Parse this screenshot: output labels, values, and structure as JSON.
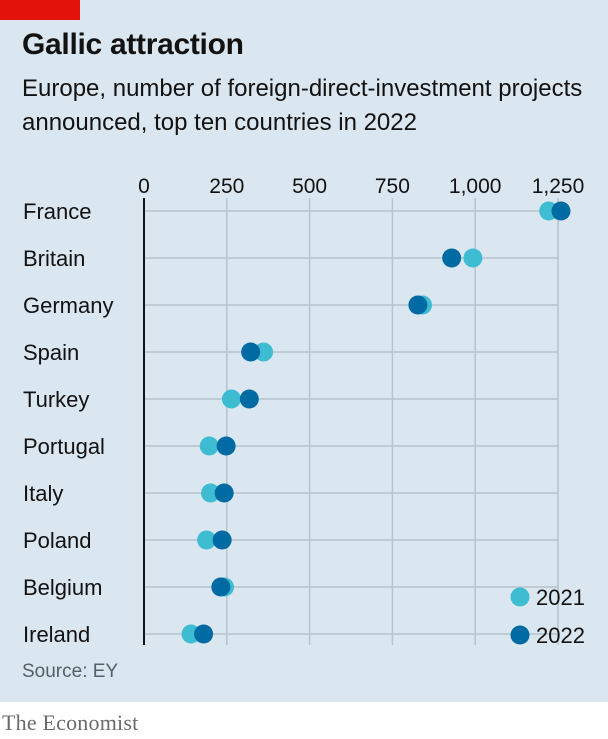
{
  "header": {
    "title": "Gallic attraction",
    "subtitle": "Europe, number of foreign-direct-investment projects announced, top ten countries in 2022"
  },
  "footer": {
    "source": "Source: EY",
    "brand": "The Economist"
  },
  "colors": {
    "background": "#dbe7f0",
    "accent_red": "#e3120b",
    "series_2021": "#3ebcd2",
    "series_2022": "#006ba2",
    "grid": "#b6c3cc",
    "axis": "#121212"
  },
  "chart_data": {
    "type": "scatter",
    "title": "Gallic attraction",
    "subtitle": "Europe, number of foreign-direct-investment projects announced, top ten countries in 2022",
    "xlim": [
      0,
      1250
    ],
    "x_ticks": [
      0,
      250,
      500,
      750,
      1000,
      1250
    ],
    "x_tick_labels": [
      "0",
      "250",
      "500",
      "750",
      "1,000",
      "1,250"
    ],
    "categories": [
      "France",
      "Britain",
      "Germany",
      "Spain",
      "Turkey",
      "Portugal",
      "Italy",
      "Poland",
      "Belgium",
      "Ireland"
    ],
    "series": [
      {
        "name": "2021",
        "color": "#3ebcd2",
        "values": [
          1222,
          993,
          841,
          361,
          264,
          197,
          201,
          189,
          243,
          142
        ]
      },
      {
        "name": "2022",
        "color": "#006ba2",
        "values": [
          1259,
          929,
          827,
          322,
          318,
          248,
          242,
          236,
          232,
          180
        ]
      }
    ],
    "grid": true,
    "legend_position": "bottom-right"
  }
}
